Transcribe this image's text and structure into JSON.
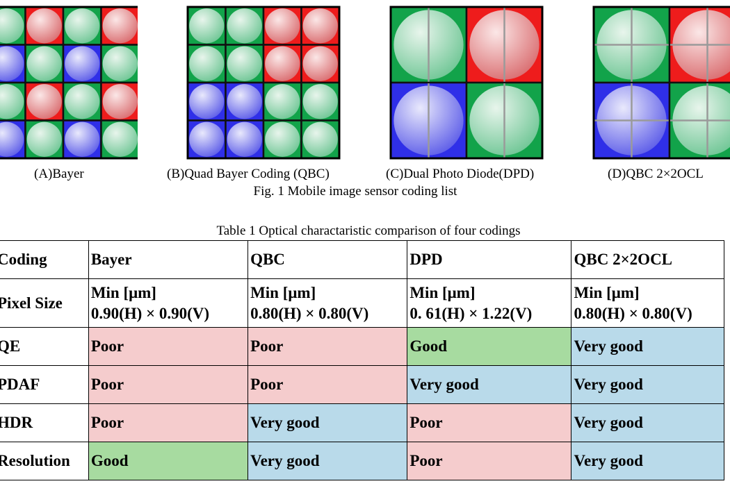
{
  "figure": {
    "panels": [
      {
        "label": "(A)Bayer",
        "type": "bayer",
        "grid": [
          [
            "G",
            "R",
            "G",
            "R"
          ],
          [
            "B",
            "G",
            "B",
            "G"
          ],
          [
            "G",
            "R",
            "G",
            "R"
          ],
          [
            "B",
            "G",
            "B",
            "G"
          ]
        ]
      },
      {
        "label": "(B)Quad Bayer Coding (QBC)",
        "type": "qbc",
        "grid": [
          [
            "G",
            "G",
            "R",
            "R"
          ],
          [
            "G",
            "G",
            "R",
            "R"
          ],
          [
            "B",
            "B",
            "G",
            "G"
          ],
          [
            "B",
            "B",
            "G",
            "G"
          ]
        ]
      },
      {
        "label": "(C)Dual Photo Diode(DPD)",
        "type": "dpd",
        "grid": [
          [
            "G",
            "R"
          ],
          [
            "B",
            "G"
          ]
        ]
      },
      {
        "label": "(D)QBC 2×2OCL",
        "type": "ocl",
        "grid": [
          [
            "G",
            "R"
          ],
          [
            "B",
            "G"
          ]
        ]
      }
    ],
    "caption": "Fig. 1 Mobile image sensor coding list"
  },
  "table": {
    "caption": "Table 1 Optical charactaristic comparison of four codings",
    "colors": {
      "Poor": "#f5cccd",
      "Good": "#a7dba0",
      "Very good": "#b9daea"
    },
    "header": [
      "Coding",
      "Bayer",
      "QBC",
      "DPD",
      "QBC 2×2OCL"
    ],
    "pixel_size": {
      "label": "Pixel Size",
      "cells": [
        {
          "line1": "Min [μm]",
          "line2": "0.90(H) × 0.90(V)"
        },
        {
          "line1": "Min [μm]",
          "line2": "0.80(H) × 0.80(V)"
        },
        {
          "line1": "Min [μm]",
          "line2": "0. 61(H) × 1.22(V)"
        },
        {
          "line1": "Min [μm]",
          "line2": "0.80(H) × 0.80(V)"
        }
      ]
    },
    "rows": [
      {
        "label": "QE",
        "values": [
          "Poor",
          "Poor",
          "Good",
          "Very good"
        ]
      },
      {
        "label": "PDAF",
        "values": [
          "Poor",
          "Poor",
          "Very good",
          "Very good"
        ]
      },
      {
        "label": "HDR",
        "values": [
          "Poor",
          "Very good",
          "Poor",
          "Very good"
        ]
      },
      {
        "label": "Resolution",
        "values": [
          "Good",
          "Very good",
          "Poor",
          "Very good"
        ]
      }
    ]
  }
}
